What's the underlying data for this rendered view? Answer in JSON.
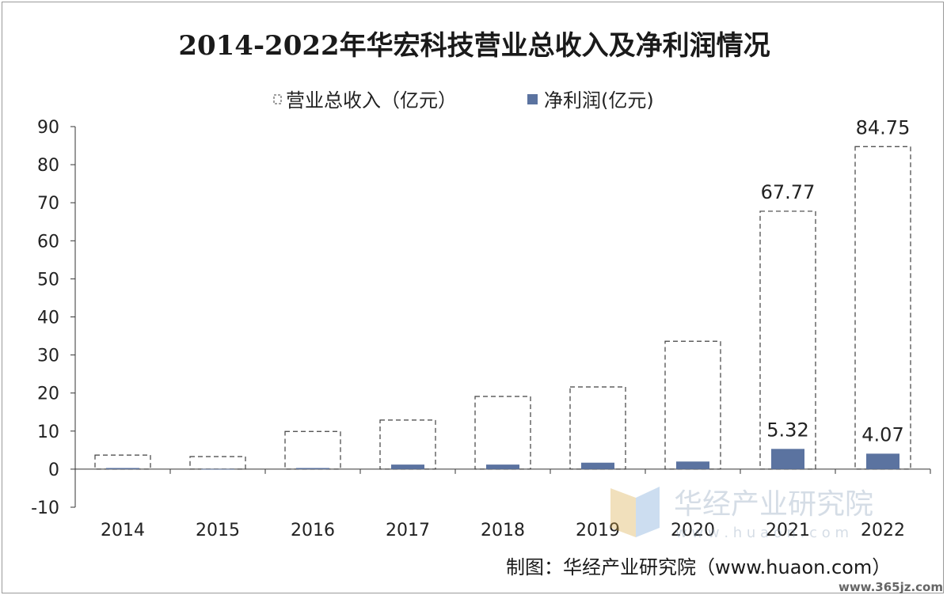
{
  "chart_data": {
    "type": "bar",
    "title": "2014-2022年华宏科技营业总收入及净利润情况",
    "categories": [
      "2014",
      "2015",
      "2016",
      "2017",
      "2018",
      "2019",
      "2020",
      "2021",
      "2022"
    ],
    "series": [
      {
        "name": "营业总收入（亿元）",
        "values": [
          3.7,
          3.3,
          9.9,
          12.9,
          19.1,
          21.6,
          33.6,
          67.77,
          84.75
        ],
        "data_labels": [
          "",
          "",
          "",
          "",
          "",
          "",
          "",
          "67.77",
          "84.75"
        ],
        "style": "dashed-outline",
        "color": "#404040"
      },
      {
        "name": "净利润(亿元)",
        "values": [
          0.3,
          0.05,
          0.3,
          1.2,
          1.2,
          1.7,
          2.0,
          5.32,
          4.07
        ],
        "data_labels": [
          "",
          "",
          "",
          "",
          "",
          "",
          "",
          "5.32",
          "4.07"
        ],
        "style": "solid",
        "color": "#5b73a0"
      }
    ],
    "y_ticks": [
      "90",
      "80",
      "70",
      "60",
      "50",
      "40",
      "30",
      "20",
      "10",
      "0",
      "-10"
    ],
    "ylim": [
      -10,
      90
    ],
    "legend": "top-center",
    "grid": false
  },
  "watermark": {
    "text": "华经产业研究院",
    "url_text": "w w w . h u a o n . c o m"
  },
  "source_note": "制图：华经产业研究院（www.huaon.com）",
  "site_mark": "www.365jz.com"
}
